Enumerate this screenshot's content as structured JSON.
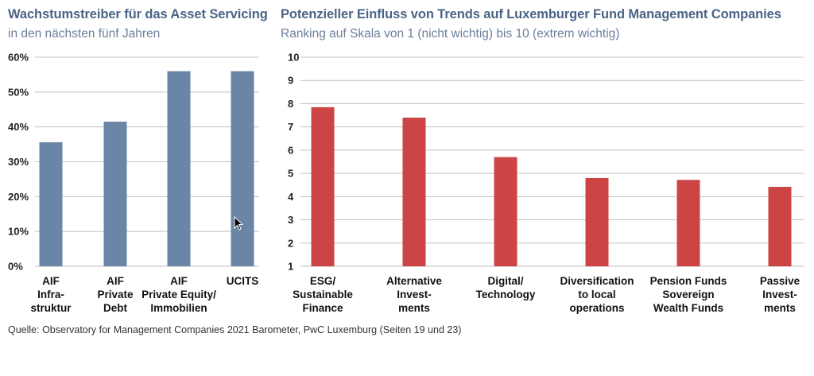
{
  "colors": {
    "left_bar": "#6b85a6",
    "right_bar": "#cc4444",
    "grid": "#bfbfbf",
    "title": "#4a6485"
  },
  "chart_data": [
    {
      "type": "bar",
      "title": "Wachstumstreiber für das Asset Servicing",
      "subtitle": "in den nächsten fünf Jahren",
      "categories": [
        [
          "AIF",
          "Infra-",
          "struktur"
        ],
        [
          "AIF",
          "Private",
          "Debt"
        ],
        [
          "AIF",
          "Private Equity/",
          "Immobilien"
        ],
        [
          "UCITS"
        ]
      ],
      "values": [
        0.356,
        0.415,
        0.56,
        0.56
      ],
      "ylim": [
        0,
        0.6
      ],
      "yticks": [
        0,
        0.1,
        0.2,
        0.3,
        0.4,
        0.5,
        0.6
      ],
      "ytick_labels": [
        "0%",
        "10%",
        "20%",
        "30%",
        "40%",
        "50%",
        "60%"
      ],
      "grid": true,
      "xlabel": "",
      "ylabel": ""
    },
    {
      "type": "bar",
      "title": "Potenzieller Einfluss von Trends auf Luxemburger Fund Management Companies",
      "subtitle": "Ranking auf Skala von 1 (nicht wichtig) bis 10 (extrem wichtig)",
      "categories": [
        [
          "ESG/",
          "Sustainable",
          "Finance"
        ],
        [
          "Alternative",
          "Invest-",
          "ments"
        ],
        [
          "Digital/",
          "Technology"
        ],
        [
          "Diversification",
          "to local",
          "operations"
        ],
        [
          "Pension Funds",
          "Sovereign",
          "Wealth Funds"
        ],
        [
          "Passive",
          "Invest-",
          "ments"
        ]
      ],
      "values": [
        7.85,
        7.4,
        5.7,
        4.8,
        4.72,
        4.42
      ],
      "ylim": [
        1,
        10
      ],
      "yticks": [
        1,
        2,
        3,
        4,
        5,
        6,
        7,
        8,
        9,
        10
      ],
      "ytick_labels": [
        "1",
        "2",
        "3",
        "4",
        "5",
        "6",
        "7",
        "8",
        "9",
        "10"
      ],
      "grid": true,
      "xlabel": "",
      "ylabel": ""
    }
  ],
  "source": "Quelle: Observatory for Management Companies 2021 Barometer, PwC Luxemburg (Seiten 19 und 23)"
}
